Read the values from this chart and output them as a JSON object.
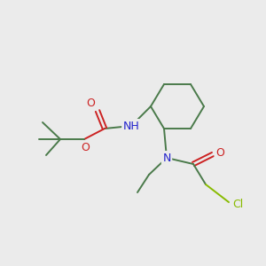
{
  "background_color": "#EBEBEB",
  "bond_color": "#4A7A4A",
  "atom_colors": {
    "N": "#2222CC",
    "O": "#CC2222",
    "Cl": "#88BB00",
    "H": "#999999"
  },
  "figsize": [
    3.0,
    3.0
  ],
  "dpi": 100
}
